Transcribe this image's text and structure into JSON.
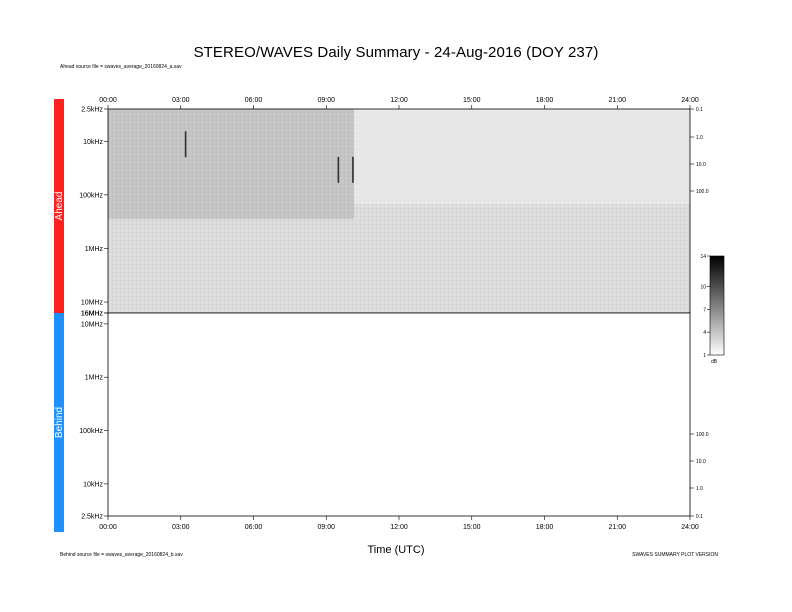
{
  "title": "STEREO/WAVES Daily Summary - 24-Aug-2016 (DOY 237)",
  "ahead_source": "Ahead source file = swaves_average_20160824_a.sav",
  "behind_source": "Behind source file = swaves_average_20160824_b.sav",
  "version_note": "SWAVES SUMMARY PLOT VERSION",
  "colors": {
    "ahead": "#ff2020",
    "behind": "#1e90ff"
  },
  "chart_data": {
    "type": "heatmap",
    "xlabel": "Time (UTC)",
    "x_ticks": [
      "00:00",
      "03:00",
      "06:00",
      "09:00",
      "12:00",
      "15:00",
      "18:00",
      "21:00",
      "24:00"
    ],
    "xlim_hours": [
      0,
      24
    ],
    "panels": [
      {
        "name": "Ahead",
        "freq_ticks": [
          "2.5kHz",
          "10kHz",
          "100kHz",
          "1MHz",
          "10MHz",
          "16MHz"
        ],
        "right_ticks": [
          "0.1",
          "1.0",
          "10.0",
          "100.0"
        ],
        "has_data": true
      },
      {
        "name": "Behind",
        "freq_ticks": [
          "16MHz",
          "10MHz",
          "1MHz",
          "100kHz",
          "10kHz",
          "2.5kHz"
        ],
        "right_ticks": [
          "100.0",
          "10.0",
          "1.0",
          "0.1"
        ],
        "has_data": false
      }
    ],
    "colorbar": {
      "ticks": [
        "14",
        "10",
        "7",
        "4",
        "1"
      ],
      "unit": "dB",
      "range": [
        1,
        14
      ]
    },
    "features": [
      {
        "time_h": 3.2,
        "freq": "10kHz",
        "label": ""
      },
      {
        "time_h": 9.5,
        "freq": "30kHz",
        "label": ""
      },
      {
        "time_h": 10.1,
        "freq": "30kHz",
        "label": ""
      }
    ]
  }
}
